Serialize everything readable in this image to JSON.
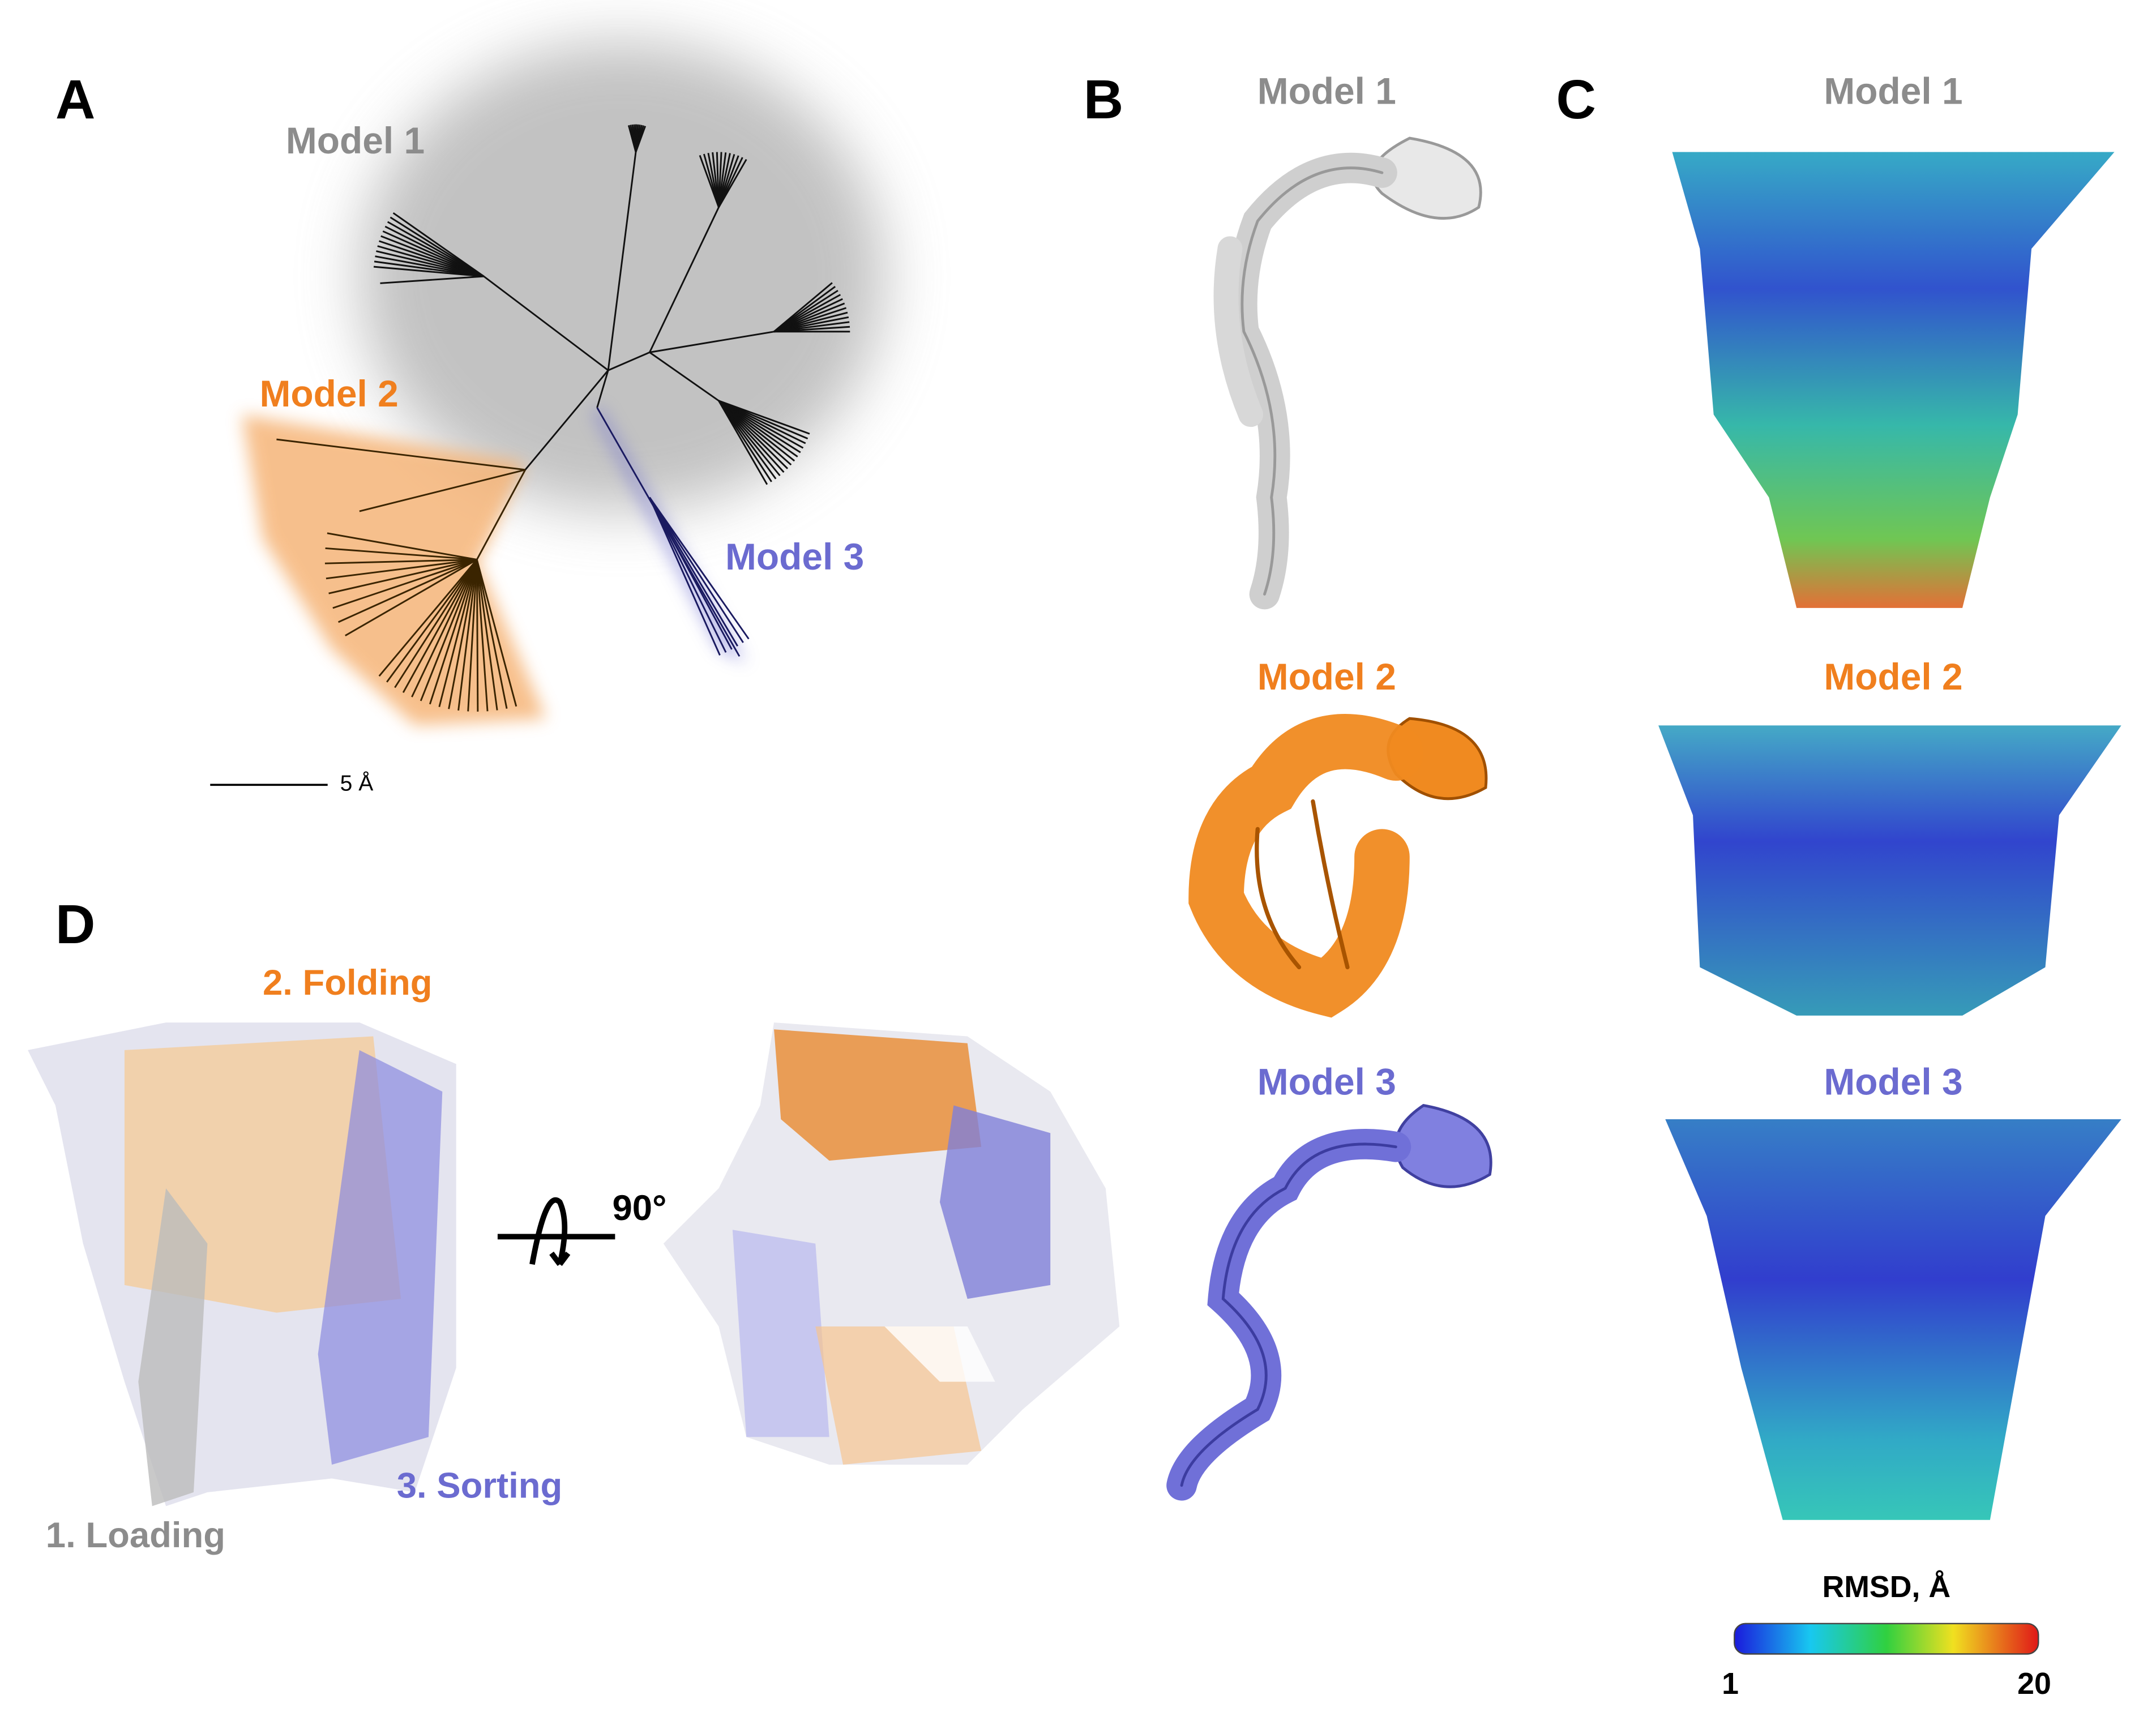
{
  "panels": {
    "A": {
      "label": "A",
      "tree_labels": [
        "Model 1",
        "Model 2",
        "Model 3"
      ],
      "scale_bar": "5 Å"
    },
    "B": {
      "label": "B",
      "models": [
        "Model 1",
        "Model 2",
        "Model 3"
      ]
    },
    "C": {
      "label": "C",
      "models": [
        "Model 1",
        "Model 2",
        "Model 3"
      ],
      "colorbar": {
        "title": "RMSD, Å",
        "min": 1,
        "max": 20
      }
    },
    "D": {
      "label": "D",
      "folding": "2. Folding",
      "loading": "1. Loading",
      "sorting": "3. Sorting",
      "rotation": "90°"
    }
  }
}
